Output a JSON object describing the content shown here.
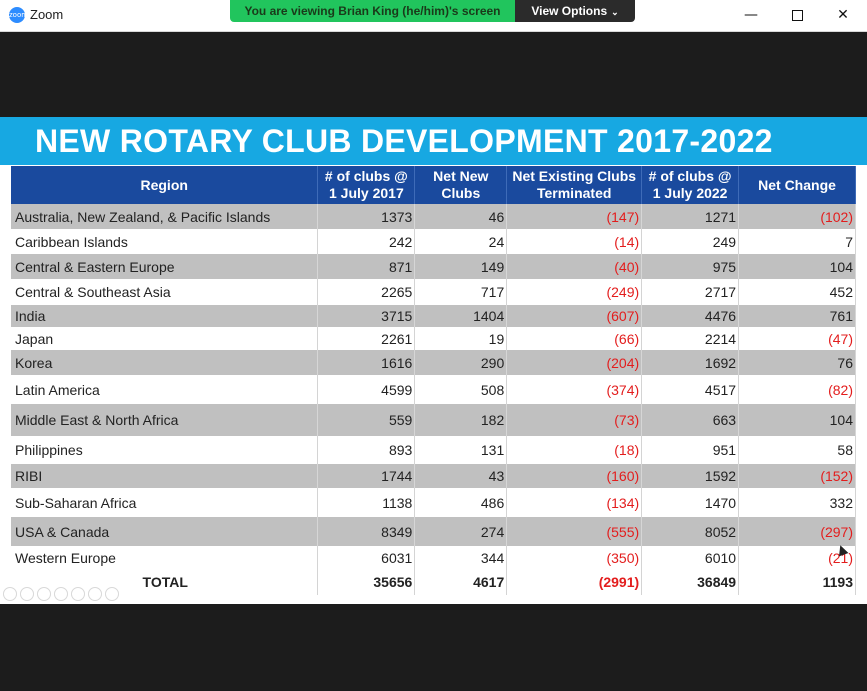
{
  "window": {
    "title": "Zoom",
    "logo_text": "zoom",
    "minimize_symbol": "—",
    "close_symbol": "✕"
  },
  "share_banner": {
    "message": "You are viewing Brian King (he/him)'s screen",
    "view_options_label": "View Options",
    "chevron": "⌄"
  },
  "slide": {
    "title": "NEW ROTARY CLUB DEVELOPMENT 2017-2022",
    "header_color": "#17a8e2",
    "table_header_color": "#1a4a9e",
    "negative_color": "#e31d1d",
    "columns": [
      "Region",
      "# of clubs @ 1 July 2017",
      "Net New Clubs",
      "Net Existing Clubs Terminated",
      "# of clubs @ 1 July 2022",
      "Net Change"
    ],
    "rows": [
      {
        "region": "Australia, New Zealand, & Pacific Islands",
        "clubs2017": "1373",
        "net_new": "46",
        "terminated": "(147)",
        "clubs2022": "1271",
        "net_change": "(102)"
      },
      {
        "region": "Caribbean Islands",
        "clubs2017": "242",
        "net_new": "24",
        "terminated": "(14)",
        "clubs2022": "249",
        "net_change": "7"
      },
      {
        "region": "Central & Eastern Europe",
        "clubs2017": "871",
        "net_new": "149",
        "terminated": "(40)",
        "clubs2022": "975",
        "net_change": "104"
      },
      {
        "region": "Central & Southeast Asia",
        "clubs2017": "2265",
        "net_new": "717",
        "terminated": "(249)",
        "clubs2022": "2717",
        "net_change": "452"
      },
      {
        "region": "India",
        "clubs2017": "3715",
        "net_new": "1404",
        "terminated": "(607)",
        "clubs2022": "4476",
        "net_change": "761"
      },
      {
        "region": "Japan",
        "clubs2017": "2261",
        "net_new": "19",
        "terminated": "(66)",
        "clubs2022": "2214",
        "net_change": "(47)"
      },
      {
        "region": "Korea",
        "clubs2017": "1616",
        "net_new": "290",
        "terminated": "(204)",
        "clubs2022": "1692",
        "net_change": "76"
      },
      {
        "region": "Latin America",
        "clubs2017": "4599",
        "net_new": "508",
        "terminated": "(374)",
        "clubs2022": "4517",
        "net_change": "(82)"
      },
      {
        "region": "Middle East & North Africa",
        "clubs2017": "559",
        "net_new": "182",
        "terminated": "(73)",
        "clubs2022": "663",
        "net_change": "104"
      },
      {
        "region": "Philippines",
        "clubs2017": "893",
        "net_new": "131",
        "terminated": "(18)",
        "clubs2022": "951",
        "net_change": "58"
      },
      {
        "region": "RIBI",
        "clubs2017": "1744",
        "net_new": "43",
        "terminated": "(160)",
        "clubs2022": "1592",
        "net_change": "(152)"
      },
      {
        "region": "Sub-Saharan Africa",
        "clubs2017": "1138",
        "net_new": "486",
        "terminated": "(134)",
        "clubs2022": "1470",
        "net_change": "332"
      },
      {
        "region": "USA & Canada",
        "clubs2017": "8349",
        "net_new": "274",
        "terminated": "(555)",
        "clubs2022": "8052",
        "net_change": "(297)"
      },
      {
        "region": "Western Europe",
        "clubs2017": "6031",
        "net_new": "344",
        "terminated": "(350)",
        "clubs2022": "6010",
        "net_change": "(21)"
      }
    ],
    "total": {
      "region": "TOTAL",
      "clubs2017": "35656",
      "net_new": "4617",
      "terminated": "(2991)",
      "clubs2022": "36849",
      "net_change": "1193"
    }
  }
}
